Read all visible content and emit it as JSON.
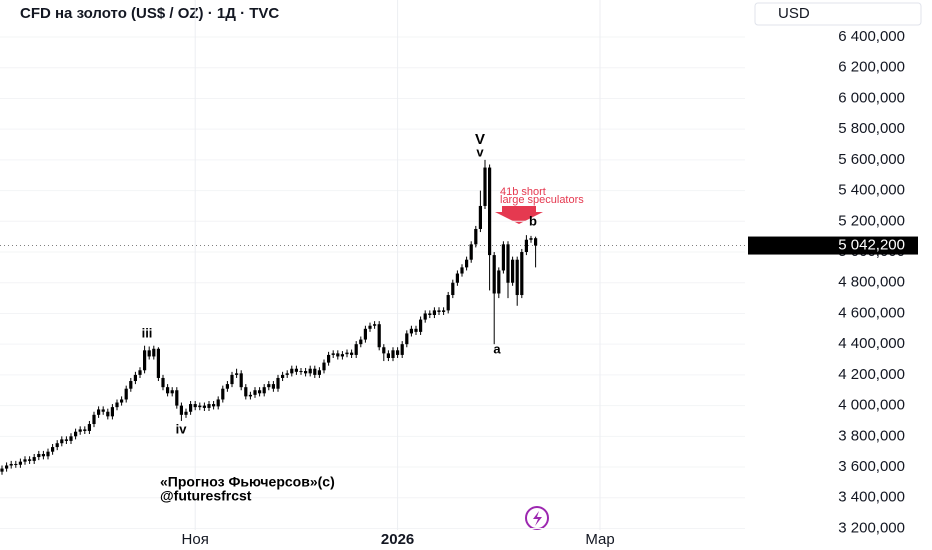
{
  "chart_data": {
    "type": "candlestick",
    "title": "CFD на золото (US$ / OZ) · 1Д · TVC",
    "currency": "USD",
    "color": "#000000",
    "last_price": {
      "value": 5042.2,
      "label": "5 042,200"
    },
    "annotations": [
      "V",
      "v",
      "iii",
      "iv",
      "a",
      "b",
      "41b short",
      "large speculators"
    ],
    "watermark": [
      "«Прогноз Фьючерсов»(c)",
      "@futuresfrcst"
    ],
    "categories": [
      null,
      null,
      null,
      null,
      null,
      null,
      null,
      null,
      null,
      null,
      null,
      null,
      null,
      null,
      null,
      null,
      null,
      null,
      null,
      null,
      null,
      null,
      null,
      null,
      null,
      null,
      null,
      null,
      null,
      null,
      null,
      null,
      null,
      null,
      null,
      null,
      null,
      null,
      null,
      null,
      null,
      null,
      "Ноя",
      null,
      null,
      null,
      null,
      null,
      null,
      null,
      null,
      null,
      null,
      null,
      null,
      null,
      null,
      null,
      null,
      null,
      null,
      null,
      null,
      null,
      null,
      null,
      null,
      null,
      null,
      null,
      null,
      null,
      null,
      null,
      null,
      null,
      null,
      null,
      null,
      null,
      null,
      null,
      null,
      null,
      null,
      null,
      "2026",
      null,
      null,
      null,
      null,
      null,
      null,
      null,
      null,
      null,
      null,
      null,
      null,
      null,
      null,
      null,
      null,
      null,
      null,
      null,
      null,
      null,
      null,
      null,
      null,
      null,
      null,
      null,
      null,
      null,
      null,
      null,
      null,
      null,
      null,
      null,
      null,
      null,
      null,
      null,
      null,
      null,
      null,
      null,
      "Мар"
    ],
    "ohlc": {
      "open": [
        3570,
        3590,
        3610,
        3620,
        3615,
        3635,
        3650,
        3640,
        3665,
        3685,
        3670,
        3700,
        3730,
        3755,
        3780,
        3770,
        3800,
        3830,
        3845,
        3835,
        3880,
        3940,
        3975,
        3960,
        3930,
        3990,
        4020,
        4040,
        4110,
        4160,
        4200,
        4230,
        4360,
        4320,
        4370,
        4180,
        4120,
        4080,
        4100,
        4000,
        3940,
        3960,
        4010,
        3990,
        4000,
        3985,
        4010,
        3995,
        4040,
        4110,
        4140,
        4200,
        4210,
        4120,
        4060,
        4070,
        4100,
        4080,
        4120,
        4140,
        4110,
        4180,
        4200,
        4210,
        4240,
        4220,
        4225,
        4210,
        4240,
        4200,
        4230,
        4280,
        4330,
        4340,
        4320,
        4335,
        4345,
        4330,
        4400,
        4430,
        4500,
        4520,
        4530,
        4380,
        4340,
        4310,
        4360,
        4330,
        4400,
        4470,
        4500,
        4480,
        4560,
        4600,
        4590,
        4620,
        4610,
        4620,
        4720,
        4800,
        4860,
        4900,
        4950,
        5050,
        5150,
        5300,
        5550,
        4980,
        4730,
        4880,
        5050,
        4800,
        4950,
        4720,
        5000,
        5080,
        5090,
        null,
        null,
        null,
        null,
        null,
        null,
        null,
        null
      ],
      "high": [
        3610,
        3630,
        3640,
        3640,
        3655,
        3670,
        3670,
        3685,
        3705,
        3705,
        3720,
        3750,
        3775,
        3800,
        3800,
        3820,
        3850,
        3865,
        3865,
        3900,
        3960,
        3995,
        3995,
        3980,
        4010,
        4040,
        4060,
        4130,
        4180,
        4220,
        4250,
        4390,
        4385,
        4390,
        4380,
        4200,
        4140,
        4120,
        4120,
        4020,
        3980,
        4030,
        4030,
        4020,
        4020,
        4030,
        4030,
        4060,
        4130,
        4160,
        4220,
        4240,
        4230,
        4140,
        4090,
        4120,
        4120,
        4140,
        4160,
        4160,
        4200,
        4220,
        4230,
        4260,
        4260,
        4245,
        4245,
        4260,
        4260,
        4250,
        4300,
        4350,
        4360,
        4360,
        4355,
        4365,
        4365,
        4420,
        4450,
        4520,
        4540,
        4550,
        4550,
        4400,
        4360,
        4380,
        4380,
        4420,
        4490,
        4520,
        4520,
        4580,
        4620,
        4620,
        4640,
        4640,
        4640,
        4740,
        4820,
        4880,
        4920,
        4970,
        5070,
        5170,
        5400,
        5600,
        5570,
        5000,
        4900,
        5070,
        5070,
        4970,
        4970,
        5020,
        5110,
        5105,
        5100,
        null,
        null,
        null,
        null,
        null,
        null,
        null,
        null
      ],
      "low": [
        3550,
        3570,
        3590,
        3595,
        3595,
        3615,
        3620,
        3620,
        3645,
        3650,
        3650,
        3680,
        3710,
        3735,
        3750,
        3750,
        3780,
        3810,
        3815,
        3815,
        3860,
        3920,
        3940,
        3910,
        3910,
        3970,
        4000,
        4020,
        4090,
        4140,
        4180,
        4210,
        4300,
        4300,
        4160,
        4100,
        4060,
        4060,
        3980,
        3900,
        3920,
        3940,
        3970,
        3970,
        3965,
        3965,
        3975,
        3975,
        4020,
        4090,
        4120,
        4180,
        4100,
        4040,
        4040,
        4050,
        4060,
        4060,
        4100,
        4090,
        4090,
        4160,
        4180,
        4190,
        4200,
        4200,
        4190,
        4190,
        4180,
        4180,
        4210,
        4260,
        4310,
        4300,
        4300,
        4315,
        4310,
        4310,
        4380,
        4410,
        4480,
        4500,
        4360,
        4290,
        4290,
        4290,
        4310,
        4310,
        4380,
        4450,
        4460,
        4460,
        4540,
        4570,
        4570,
        4590,
        4590,
        4600,
        4700,
        4780,
        4840,
        4880,
        4930,
        5030,
        5130,
        5280,
        4750,
        4400,
        4700,
        4860,
        4700,
        4780,
        4650,
        4700,
        4980,
        5060,
        4900,
        null,
        null,
        null,
        null,
        null,
        null,
        null,
        null
      ],
      "close": [
        3590,
        3610,
        3620,
        3615,
        3635,
        3650,
        3640,
        3665,
        3685,
        3670,
        3700,
        3730,
        3755,
        3780,
        3770,
        3800,
        3830,
        3845,
        3835,
        3880,
        3940,
        3975,
        3960,
        3930,
        3990,
        4020,
        4040,
        4110,
        4160,
        4200,
        4230,
        4360,
        4320,
        4370,
        4180,
        4120,
        4080,
        4100,
        4000,
        3940,
        3960,
        4010,
        3990,
        4000,
        3985,
        4010,
        3995,
        4040,
        4110,
        4140,
        4200,
        4210,
        4120,
        4060,
        4070,
        4100,
        4080,
        4120,
        4140,
        4110,
        4180,
        4200,
        4210,
        4240,
        4220,
        4225,
        4210,
        4240,
        4200,
        4230,
        4280,
        4330,
        4340,
        4320,
        4335,
        4345,
        4330,
        4400,
        4430,
        4500,
        4520,
        4530,
        4380,
        4340,
        4310,
        4360,
        4330,
        4400,
        4470,
        4500,
        4480,
        4560,
        4600,
        4590,
        4620,
        4610,
        4620,
        4720,
        4800,
        4860,
        4900,
        4950,
        5050,
        5150,
        5300,
        5550,
        4980,
        4730,
        4880,
        5050,
        4800,
        4950,
        4720,
        5000,
        5080,
        5090,
        5042.2,
        null,
        null,
        null,
        null,
        null,
        null,
        null,
        null
      ]
    },
    "ylim": [
      3190,
      6641
    ],
    "yticks": [
      {
        "value": 3200,
        "label": "3 200,000"
      },
      {
        "value": 3400,
        "label": "3 400,000"
      },
      {
        "value": 3600,
        "label": "3 600,000"
      },
      {
        "value": 3800,
        "label": "3 800,000"
      },
      {
        "value": 4000,
        "label": "4 000,000"
      },
      {
        "value": 4200,
        "label": "4 200,000"
      },
      {
        "value": 4400,
        "label": "4 400,000"
      },
      {
        "value": 4600,
        "label": "4 600,000"
      },
      {
        "value": 4800,
        "label": "4 800,000"
      },
      {
        "value": 5000,
        "label": "5 000,000"
      },
      {
        "value": 5200,
        "label": "5 200,000"
      },
      {
        "value": 5400,
        "label": "5 400,000"
      },
      {
        "value": 5600,
        "label": "5 600,000"
      },
      {
        "value": 5800,
        "label": "5 800,000"
      },
      {
        "value": 6000,
        "label": "6 000,000"
      },
      {
        "value": 6200,
        "label": "6 200,000"
      },
      {
        "value": 6400,
        "label": "6 400,000"
      }
    ],
    "grid": true
  }
}
